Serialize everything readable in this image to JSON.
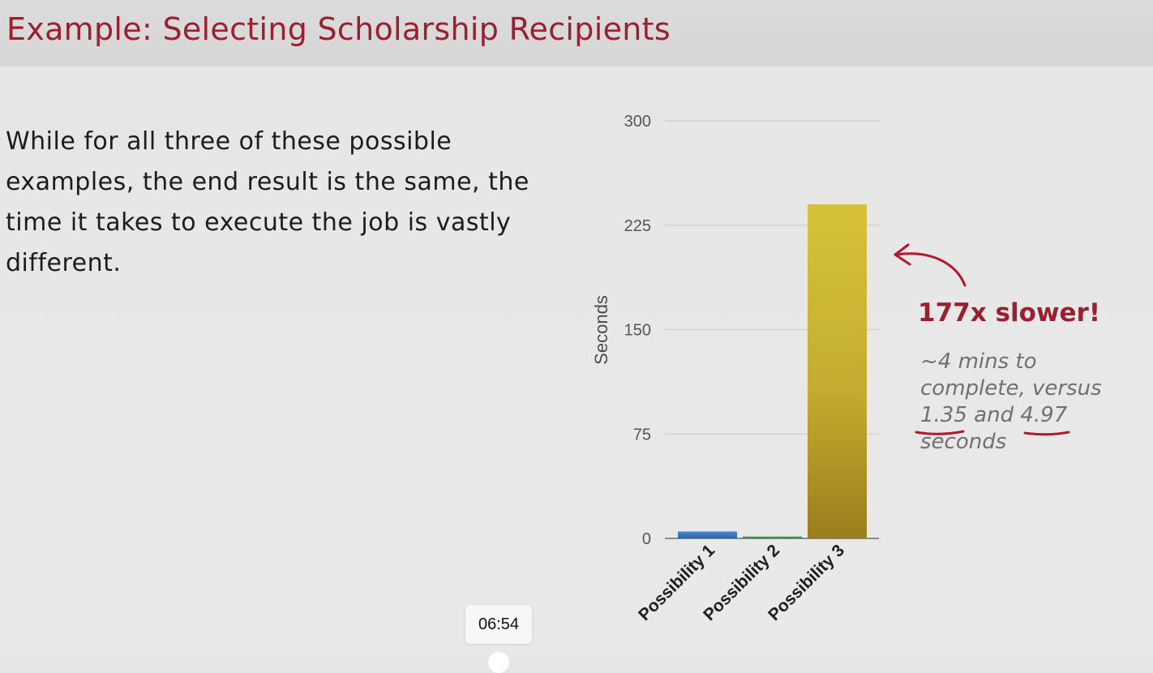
{
  "slide": {
    "title": "Example: Selecting Scholarship Recipients",
    "body": "While for all three of these possible examples, the end result is the same, the time it takes to execute the job is vastly different."
  },
  "callout": {
    "headline": "177x slower!",
    "line1": "~4 mins to",
    "line2": "complete, versus",
    "value_a": "1.35",
    "and_word": "and",
    "value_b": "4.97",
    "line4": "seconds"
  },
  "player": {
    "timestamp": "06:54"
  },
  "colors": {
    "title": "#9a1f2f",
    "annotation": "#b5172b",
    "bar1": "#3a75c4",
    "bar2": "#3f9a3f",
    "bar3": "#c9b432"
  },
  "chart_data": {
    "type": "bar",
    "title": "",
    "xlabel": "",
    "ylabel": "Seconds",
    "categories": [
      "Possibility 1",
      "Possibility 2",
      "Possibility 3"
    ],
    "values": [
      4.97,
      1.35,
      240
    ],
    "yticks": [
      0,
      75,
      150,
      225,
      300
    ],
    "ylim": [
      0,
      300
    ],
    "grid": true,
    "legend": "none"
  }
}
